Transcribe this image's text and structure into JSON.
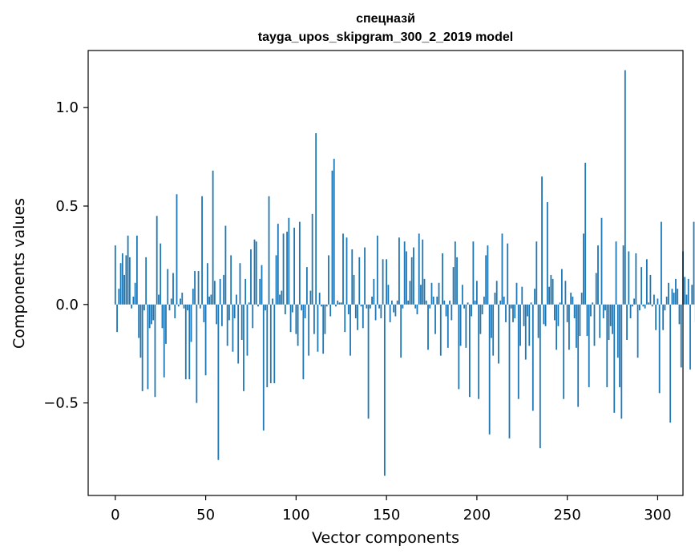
{
  "chart_data": {
    "type": "bar",
    "title_line1": "спецназй",
    "title_line2": "tayga_upos_skipgram_300_2_2019 model",
    "xlabel": "Vector components",
    "ylabel": "Components values",
    "xlim": [
      -15,
      314
    ],
    "ylim": [
      -0.97,
      1.29
    ],
    "xticks": [
      0,
      50,
      100,
      150,
      200,
      250,
      300
    ],
    "yticks": [
      -0.5,
      0.0,
      0.5,
      1.0
    ],
    "xtick_labels": [
      "0",
      "50",
      "100",
      "150",
      "200",
      "250",
      "300"
    ],
    "ytick_labels": [
      "−0.5",
      "0.0",
      "0.5",
      "1.0"
    ],
    "bar_color": "#1f77b4",
    "values": [
      0.3,
      -0.14,
      0.08,
      0.21,
      0.26,
      0.15,
      0.25,
      0.35,
      0.24,
      -0.02,
      0.04,
      0.11,
      0.35,
      -0.17,
      -0.27,
      -0.44,
      -0.03,
      0.24,
      -0.43,
      -0.12,
      -0.1,
      -0.08,
      -0.47,
      0.45,
      0.05,
      0.31,
      -0.12,
      -0.37,
      -0.2,
      0.18,
      -0.03,
      0.03,
      0.16,
      -0.07,
      0.56,
      -0.01,
      0.03,
      0.06,
      -0.02,
      -0.38,
      -0.03,
      -0.38,
      -0.19,
      0.08,
      0.17,
      -0.5,
      0.17,
      -0.02,
      0.55,
      -0.09,
      -0.36,
      0.21,
      0.04,
      0.05,
      0.68,
      0.12,
      -0.1,
      -0.79,
      0.13,
      -0.11,
      0.15,
      0.4,
      -0.21,
      -0.08,
      0.25,
      -0.24,
      -0.07,
      0.05,
      -0.3,
      0.21,
      -0.18,
      -0.44,
      0.13,
      -0.26,
      0.01,
      0.28,
      -0.12,
      0.33,
      0.32,
      -0.01,
      0.13,
      0.2,
      -0.64,
      -0.03,
      -0.42,
      0.55,
      -0.4,
      0.03,
      -0.4,
      0.25,
      0.41,
      0.05,
      0.07,
      0.36,
      -0.05,
      0.37,
      0.44,
      -0.14,
      -0.04,
      0.39,
      -0.15,
      -0.21,
      0.42,
      -0.03,
      -0.38,
      -0.07,
      0.19,
      -0.26,
      0.07,
      0.46,
      -0.15,
      0.87,
      -0.24,
      0.06,
      -0.01,
      -0.25,
      -0.15,
      -0.01,
      0.25,
      -0.06,
      0.68,
      0.74,
      -0.01,
      0.02,
      0.01,
      0.01,
      0.36,
      -0.14,
      0.34,
      -0.05,
      -0.26,
      0.28,
      0.15,
      -0.07,
      -0.13,
      0.24,
      -0.01,
      -0.12,
      0.29,
      -0.02,
      -0.58,
      -0.02,
      0.04,
      0.13,
      -0.08,
      0.35,
      -0.02,
      -0.07,
      0.23,
      -0.87,
      0.23,
      0.1,
      -0.09,
      0.02,
      -0.04,
      -0.06,
      0.02,
      0.34,
      -0.27,
      -0.02,
      0.32,
      0.27,
      0.02,
      0.12,
      0.24,
      0.29,
      -0.02,
      -0.05,
      0.36,
      0.1,
      0.33,
      0.13,
      0.02,
      -0.23,
      -0.02,
      0.11,
      0.04,
      -0.15,
      0.04,
      0.11,
      -0.26,
      0.26,
      0.02,
      -0.06,
      -0.22,
      0.02,
      -0.08,
      0.19,
      0.32,
      0.24,
      -0.43,
      -0.21,
      0.1,
      -0.02,
      -0.22,
      0.01,
      -0.47,
      -0.06,
      0.32,
      0.02,
      0.12,
      -0.48,
      -0.15,
      -0.05,
      0.04,
      0.25,
      0.3,
      -0.66,
      -0.17,
      -0.26,
      0.06,
      0.12,
      -0.3,
      0.02,
      0.36,
      0.04,
      -0.09,
      0.31,
      -0.68,
      -0.02,
      -0.09,
      -0.07,
      0.11,
      -0.48,
      -0.21,
      0.09,
      -0.11,
      -0.28,
      -0.06,
      -0.21,
      0.01,
      -0.54,
      0.08,
      0.32,
      -0.17,
      -0.73,
      0.65,
      -0.1,
      -0.11,
      0.52,
      0.09,
      0.15,
      0.13,
      -0.08,
      -0.23,
      -0.11,
      0.01,
      0.18,
      -0.48,
      0.12,
      -0.09,
      -0.23,
      0.06,
      0.04,
      -0.07,
      -0.22,
      -0.52,
      -0.16,
      0.06,
      0.36,
      0.72,
      -0.16,
      -0.42,
      -0.06,
      0.01,
      -0.21,
      0.16,
      0.3,
      -0.17,
      0.44,
      -0.07,
      -0.03,
      -0.42,
      -0.18,
      -0.11,
      -0.15,
      -0.55,
      0.32,
      -0.27,
      -0.42,
      -0.58,
      0.3,
      1.19,
      -0.18,
      0.27,
      -0.07,
      -0.01,
      0.03,
      0.26,
      -0.27,
      -0.03,
      0.19,
      -0.01,
      -0.02,
      0.23,
      0.01,
      0.15,
      -0.01,
      0.05,
      -0.13,
      0.03,
      -0.45,
      0.42,
      -0.13,
      -0.03,
      0.04,
      0.11,
      -0.6,
      0.08,
      0.06,
      0.13,
      0.08,
      -0.1,
      -0.32,
      0.27,
      0.14,
      0.05,
      0.13,
      -0.33,
      0.1,
      0.42,
      -0.09
    ]
  }
}
